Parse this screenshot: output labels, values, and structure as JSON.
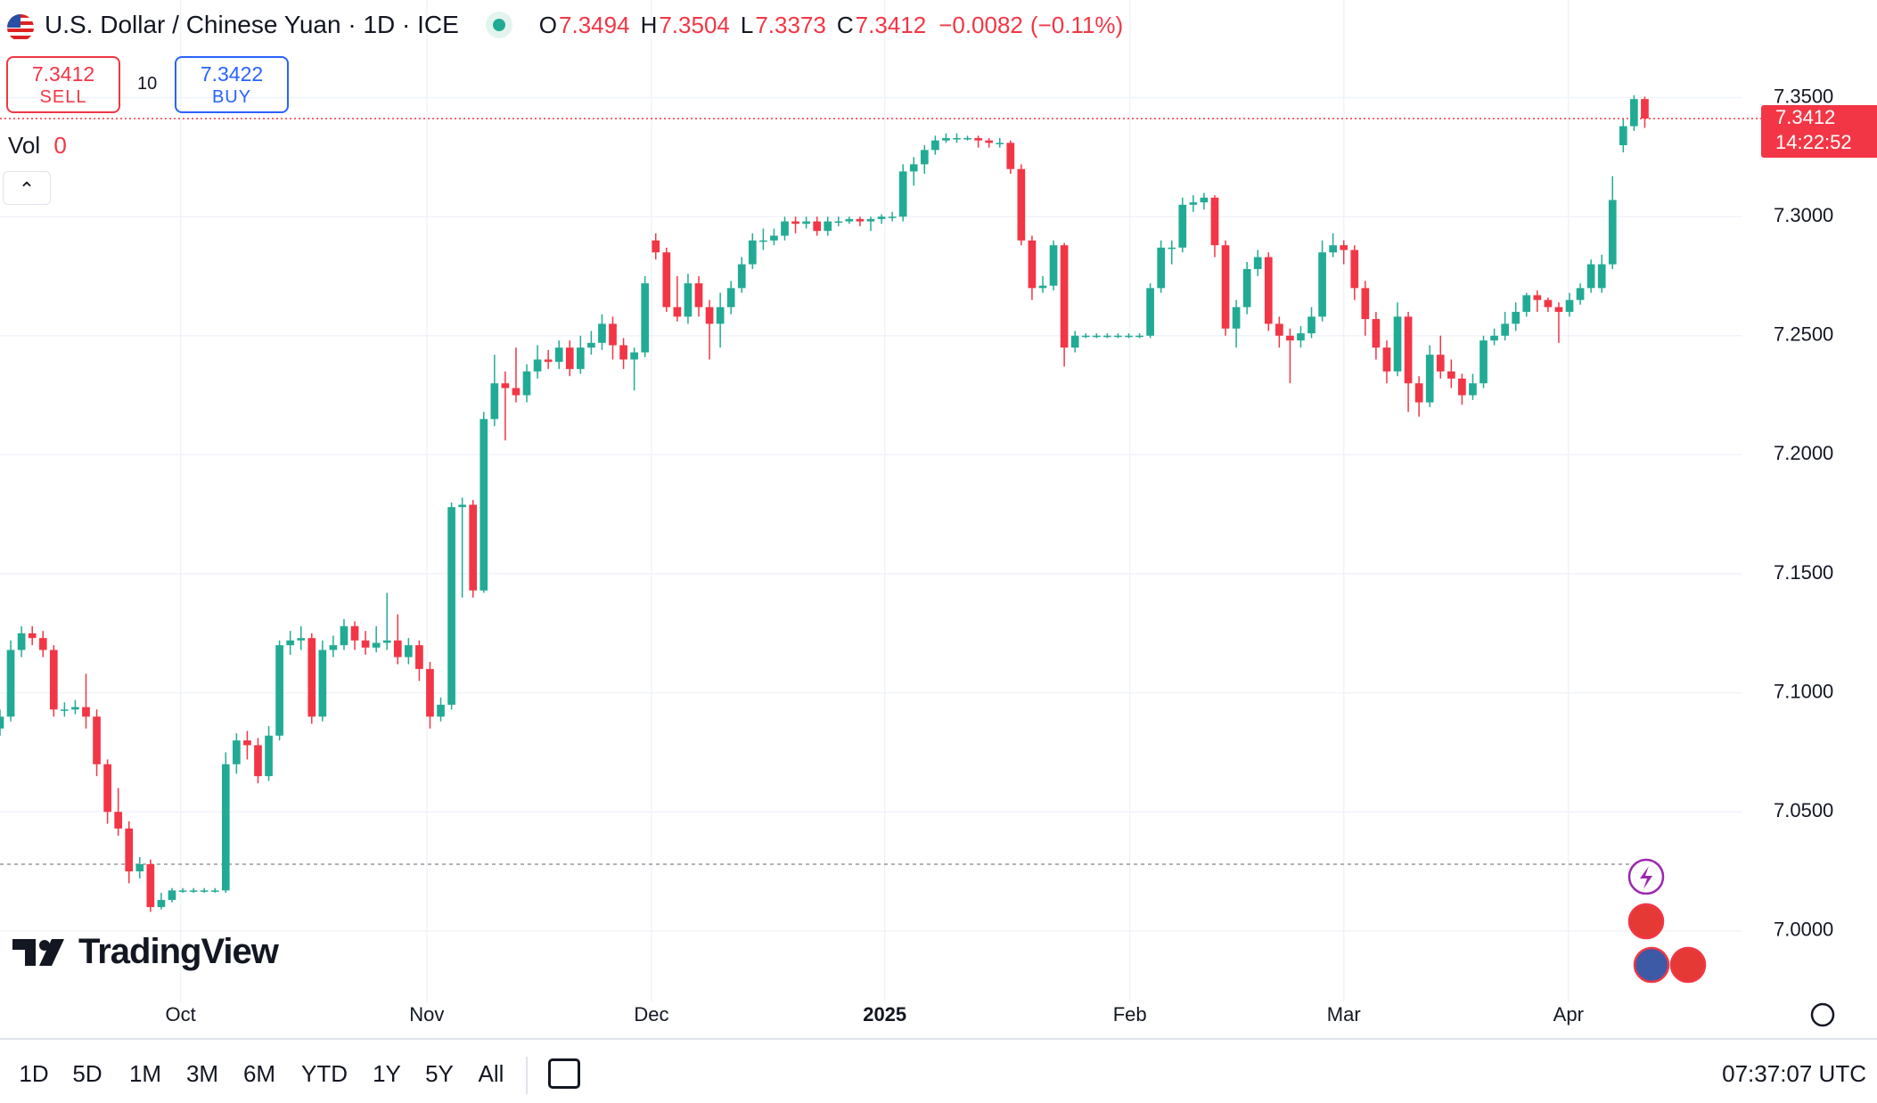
{
  "chart_data": {
    "type": "candlestick",
    "header": {
      "title": "U.S. Dollar / Chinese Yuan · 1D · ICE",
      "ohlc_labels": [
        "O",
        "H",
        "L",
        "C"
      ],
      "change": {
        "value": -0.0082,
        "label": "−0.0082"
      },
      "change_pct": {
        "value": -0.11,
        "label": "(−0.11%)"
      }
    },
    "trade": {
      "sell_label": "SELL",
      "buy_label": "BUY",
      "buy_price": 7.3422,
      "spread": 10
    },
    "volume": {
      "label": "Vol",
      "value": 0
    },
    "countdown": "14:22:52",
    "clock": "07:37:07 UTC",
    "brand": "TradingView",
    "ranges": [
      "1D",
      "5D",
      "1M",
      "3M",
      "6M",
      "YTD",
      "1Y",
      "5Y",
      "All"
    ],
    "up_color": "#22ab94",
    "down_color": "#f23645",
    "grid": true,
    "ref_line": 7.028,
    "xlim": [
      0,
      162
    ],
    "ylim": [
      6.97,
      7.391
    ],
    "xticks": [
      {
        "value": 16.8,
        "label": "Oct"
      },
      {
        "value": 39.7,
        "label": "Nov"
      },
      {
        "value": 60.6,
        "label": "Dec"
      },
      {
        "value": 82.3,
        "label": "2025",
        "bold": true
      },
      {
        "value": 105.1,
        "label": "Feb"
      },
      {
        "value": 125,
        "label": "Mar"
      },
      {
        "value": 145.9,
        "label": "Apr"
      }
    ],
    "yticks": [
      {
        "value": 7.0,
        "label": "7.0000"
      },
      {
        "value": 7.05,
        "label": "7.0500"
      },
      {
        "value": 7.1,
        "label": "7.1000"
      },
      {
        "value": 7.15,
        "label": "7.1500"
      },
      {
        "value": 7.2,
        "label": "7.2000"
      },
      {
        "value": 7.25,
        "label": "7.2500"
      },
      {
        "value": 7.3,
        "label": "7.3000"
      },
      {
        "value": 7.35,
        "label": "7.3500"
      }
    ],
    "candles": [
      [
        7.085,
        7.093,
        7.082,
        7.09
      ],
      [
        7.09,
        7.122,
        7.088,
        7.118
      ],
      [
        7.118,
        7.128,
        7.115,
        7.125
      ],
      [
        7.125,
        7.128,
        7.12,
        7.123
      ],
      [
        7.123,
        7.126,
        7.115,
        7.118
      ],
      [
        7.118,
        7.12,
        7.09,
        7.093
      ],
      [
        7.093,
        7.096,
        7.09,
        7.093
      ],
      [
        7.093,
        7.097,
        7.091,
        7.094
      ],
      [
        7.094,
        7.108,
        7.085,
        7.09
      ],
      [
        7.09,
        7.093,
        7.065,
        7.07
      ],
      [
        7.07,
        7.072,
        7.045,
        7.05
      ],
      [
        7.05,
        7.06,
        7.04,
        7.043
      ],
      [
        7.043,
        7.046,
        7.02,
        7.025
      ],
      [
        7.025,
        7.031,
        7.022,
        7.028
      ],
      [
        7.028,
        7.03,
        7.008,
        7.01
      ],
      [
        7.01,
        7.016,
        7.009,
        7.013
      ],
      [
        7.013,
        7.018,
        7.012,
        7.017
      ],
      [
        7.017,
        7.018,
        7.016,
        7.017
      ],
      [
        7.017,
        7.018,
        7.016,
        7.017
      ],
      [
        7.017,
        7.018,
        7.016,
        7.017
      ],
      [
        7.017,
        7.018,
        7.016,
        7.017
      ],
      [
        7.017,
        7.075,
        7.016,
        7.07
      ],
      [
        7.07,
        7.083,
        7.066,
        7.08
      ],
      [
        7.08,
        7.084,
        7.072,
        7.078
      ],
      [
        7.078,
        7.081,
        7.062,
        7.065
      ],
      [
        7.065,
        7.086,
        7.063,
        7.082
      ],
      [
        7.082,
        7.122,
        7.08,
        7.12
      ],
      [
        7.12,
        7.126,
        7.116,
        7.122
      ],
      [
        7.122,
        7.128,
        7.118,
        7.123
      ],
      [
        7.123,
        7.125,
        7.087,
        7.09
      ],
      [
        7.09,
        7.122,
        7.088,
        7.118
      ],
      [
        7.118,
        7.124,
        7.115,
        7.12
      ],
      [
        7.12,
        7.131,
        7.118,
        7.128
      ],
      [
        7.128,
        7.13,
        7.118,
        7.122
      ],
      [
        7.122,
        7.126,
        7.116,
        7.119
      ],
      [
        7.119,
        7.128,
        7.117,
        7.121
      ],
      [
        7.121,
        7.142,
        7.118,
        7.122
      ],
      [
        7.122,
        7.133,
        7.112,
        7.115
      ],
      [
        7.115,
        7.123,
        7.112,
        7.12
      ],
      [
        7.12,
        7.122,
        7.105,
        7.11
      ],
      [
        7.11,
        7.113,
        7.085,
        7.09
      ],
      [
        7.09,
        7.098,
        7.088,
        7.095
      ],
      [
        7.095,
        7.18,
        7.093,
        7.178
      ],
      [
        7.178,
        7.182,
        7.14,
        7.179
      ],
      [
        7.179,
        7.181,
        7.14,
        7.143
      ],
      [
        7.143,
        7.218,
        7.142,
        7.215
      ],
      [
        7.215,
        7.242,
        7.212,
        7.23
      ],
      [
        7.23,
        7.235,
        7.206,
        7.228
      ],
      [
        7.228,
        7.245,
        7.222,
        7.225
      ],
      [
        7.225,
        7.238,
        7.222,
        7.235
      ],
      [
        7.235,
        7.246,
        7.232,
        7.24
      ],
      [
        7.24,
        7.244,
        7.236,
        7.239
      ],
      [
        7.239,
        7.248,
        7.236,
        7.245
      ],
      [
        7.245,
        7.248,
        7.233,
        7.236
      ],
      [
        7.236,
        7.25,
        7.234,
        7.245
      ],
      [
        7.245,
        7.252,
        7.242,
        7.247
      ],
      [
        7.247,
        7.259,
        7.244,
        7.255
      ],
      [
        7.255,
        7.258,
        7.24,
        7.246
      ],
      [
        7.246,
        7.249,
        7.236,
        7.24
      ],
      [
        7.24,
        7.245,
        7.227,
        7.243
      ],
      [
        7.243,
        7.275,
        7.241,
        7.272
      ],
      [
        7.29,
        7.293,
        7.282,
        7.285
      ],
      [
        7.285,
        7.287,
        7.26,
        7.262
      ],
      [
        7.262,
        7.275,
        7.256,
        7.258
      ],
      [
        7.258,
        7.276,
        7.255,
        7.272
      ],
      [
        7.272,
        7.275,
        7.258,
        7.262
      ],
      [
        7.262,
        7.265,
        7.24,
        7.255
      ],
      [
        7.255,
        7.268,
        7.245,
        7.262
      ],
      [
        7.262,
        7.273,
        7.259,
        7.27
      ],
      [
        7.27,
        7.283,
        7.268,
        7.28
      ],
      [
        7.28,
        7.293,
        7.278,
        7.29
      ],
      [
        7.29,
        7.295,
        7.286,
        7.29
      ],
      [
        7.29,
        7.295,
        7.288,
        7.292
      ],
      [
        7.292,
        7.3,
        7.29,
        7.298
      ],
      [
        7.298,
        7.3,
        7.293,
        7.297
      ],
      [
        7.297,
        7.3,
        7.295,
        7.298
      ],
      [
        7.298,
        7.3,
        7.292,
        7.294
      ],
      [
        7.294,
        7.3,
        7.292,
        7.298
      ],
      [
        7.298,
        7.3,
        7.296,
        7.298
      ],
      [
        7.298,
        7.3,
        7.297,
        7.299
      ],
      [
        7.299,
        7.3,
        7.296,
        7.298
      ],
      [
        7.298,
        7.3,
        7.294,
        7.299
      ],
      [
        7.299,
        7.301,
        7.297,
        7.3
      ],
      [
        7.3,
        7.302,
        7.298,
        7.3
      ],
      [
        7.3,
        7.322,
        7.298,
        7.319
      ],
      [
        7.319,
        7.325,
        7.313,
        7.322
      ],
      [
        7.322,
        7.33,
        7.318,
        7.328
      ],
      [
        7.328,
        7.334,
        7.326,
        7.332
      ],
      [
        7.332,
        7.335,
        7.331,
        7.333
      ],
      [
        7.333,
        7.335,
        7.331,
        7.333
      ],
      [
        7.333,
        7.334,
        7.332,
        7.333
      ],
      [
        7.333,
        7.334,
        7.329,
        7.332
      ],
      [
        7.332,
        7.333,
        7.329,
        7.331
      ],
      [
        7.331,
        7.333,
        7.329,
        7.331
      ],
      [
        7.331,
        7.332,
        7.318,
        7.32
      ],
      [
        7.32,
        7.322,
        7.288,
        7.29
      ],
      [
        7.29,
        7.292,
        7.265,
        7.27
      ],
      [
        7.27,
        7.275,
        7.268,
        7.271
      ],
      [
        7.271,
        7.29,
        7.269,
        7.288
      ],
      [
        7.288,
        7.289,
        7.237,
        7.245
      ],
      [
        7.245,
        7.252,
        7.243,
        7.25
      ],
      [
        7.25,
        7.251,
        7.249,
        7.25
      ],
      [
        7.25,
        7.251,
        7.249,
        7.25
      ],
      [
        7.25,
        7.251,
        7.249,
        7.25
      ],
      [
        7.25,
        7.251,
        7.249,
        7.25
      ],
      [
        7.25,
        7.251,
        7.249,
        7.25
      ],
      [
        7.25,
        7.251,
        7.249,
        7.25
      ],
      [
        7.25,
        7.272,
        7.249,
        7.27
      ],
      [
        7.27,
        7.29,
        7.268,
        7.287
      ],
      [
        7.287,
        7.29,
        7.28,
        7.287
      ],
      [
        7.287,
        7.308,
        7.285,
        7.305
      ],
      [
        7.305,
        7.309,
        7.302,
        7.306
      ],
      [
        7.306,
        7.31,
        7.303,
        7.308
      ],
      [
        7.308,
        7.309,
        7.283,
        7.288
      ],
      [
        7.288,
        7.29,
        7.25,
        7.253
      ],
      [
        7.253,
        7.265,
        7.245,
        7.262
      ],
      [
        7.262,
        7.281,
        7.259,
        7.278
      ],
      [
        7.278,
        7.286,
        7.275,
        7.283
      ],
      [
        7.283,
        7.285,
        7.252,
        7.255
      ],
      [
        7.255,
        7.258,
        7.245,
        7.25
      ],
      [
        7.25,
        7.253,
        7.23,
        7.248
      ],
      [
        7.248,
        7.254,
        7.245,
        7.251
      ],
      [
        7.251,
        7.262,
        7.249,
        7.258
      ],
      [
        7.258,
        7.29,
        7.256,
        7.285
      ],
      [
        7.285,
        7.293,
        7.283,
        7.288
      ],
      [
        7.288,
        7.29,
        7.28,
        7.286
      ],
      [
        7.286,
        7.288,
        7.265,
        7.27
      ],
      [
        7.27,
        7.273,
        7.25,
        7.257
      ],
      [
        7.257,
        7.26,
        7.24,
        7.245
      ],
      [
        7.245,
        7.248,
        7.23,
        7.235
      ],
      [
        7.235,
        7.264,
        7.233,
        7.258
      ],
      [
        7.258,
        7.26,
        7.218,
        7.23
      ],
      [
        7.23,
        7.233,
        7.216,
        7.222
      ],
      [
        7.222,
        7.246,
        7.22,
        7.242
      ],
      [
        7.242,
        7.25,
        7.232,
        7.235
      ],
      [
        7.235,
        7.24,
        7.228,
        7.232
      ],
      [
        7.232,
        7.234,
        7.221,
        7.225
      ],
      [
        7.225,
        7.234,
        7.223,
        7.23
      ],
      [
        7.23,
        7.25,
        7.228,
        7.248
      ],
      [
        7.248,
        7.253,
        7.246,
        7.25
      ],
      [
        7.25,
        7.26,
        7.248,
        7.255
      ],
      [
        7.255,
        7.264,
        7.252,
        7.26
      ],
      [
        7.26,
        7.268,
        7.258,
        7.267
      ],
      [
        7.267,
        7.269,
        7.26,
        7.265
      ],
      [
        7.265,
        7.266,
        7.26,
        7.262
      ],
      [
        7.262,
        7.264,
        7.247,
        7.26
      ],
      [
        7.26,
        7.268,
        7.258,
        7.265
      ],
      [
        7.265,
        7.272,
        7.263,
        7.27
      ],
      [
        7.27,
        7.282,
        7.268,
        7.28
      ],
      [
        7.27,
        7.284,
        7.268,
        7.28
      ],
      [
        7.28,
        7.317,
        7.278,
        7.307
      ],
      [
        7.33,
        7.341,
        7.327,
        7.338
      ],
      [
        7.338,
        7.351,
        7.336,
        7.3494
      ],
      [
        7.3494,
        7.3504,
        7.3373,
        7.3412
      ]
    ]
  }
}
